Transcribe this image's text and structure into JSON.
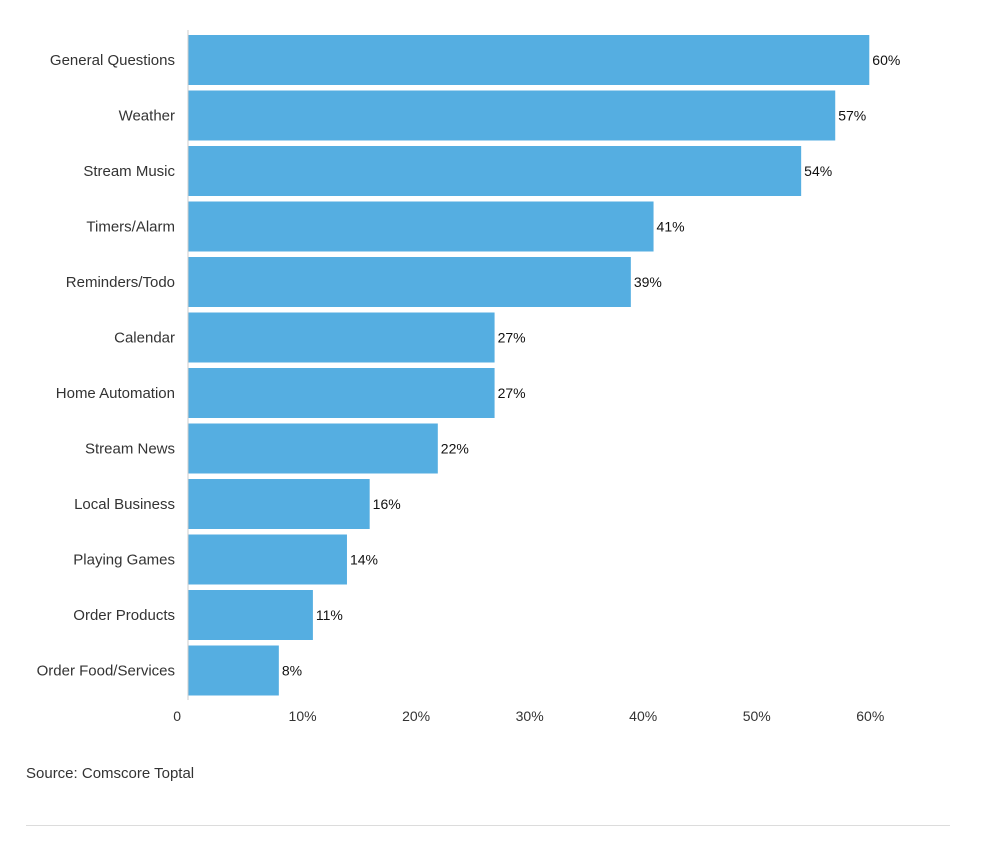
{
  "chart_data": {
    "type": "bar",
    "orientation": "horizontal",
    "categories": [
      "General Questions",
      "Weather",
      "Stream Music",
      "Timers/Alarm",
      "Reminders/Todo",
      "Calendar",
      "Home Automation",
      "Stream News",
      "Local Business",
      "Playing Games",
      "Order Products",
      "Order Food/Services"
    ],
    "values": [
      60,
      57,
      54,
      41,
      39,
      27,
      27,
      22,
      16,
      14,
      11,
      8
    ],
    "data_labels": [
      "60%",
      "57%",
      "54%",
      "41%",
      "39%",
      "27%",
      "27%",
      "22%",
      "16%",
      "14%",
      "11%",
      "8%"
    ],
    "xlim": [
      0,
      62
    ],
    "x_ticks": [
      0,
      10,
      20,
      30,
      40,
      50,
      60
    ],
    "x_tick_labels": [
      "0",
      "10%",
      "20%",
      "30%",
      "40%",
      "50%",
      "60%"
    ],
    "bar_color": "#55aee1",
    "grid": false,
    "legend": "none"
  },
  "footer": {
    "source": "Source: Comscore Toptal"
  }
}
